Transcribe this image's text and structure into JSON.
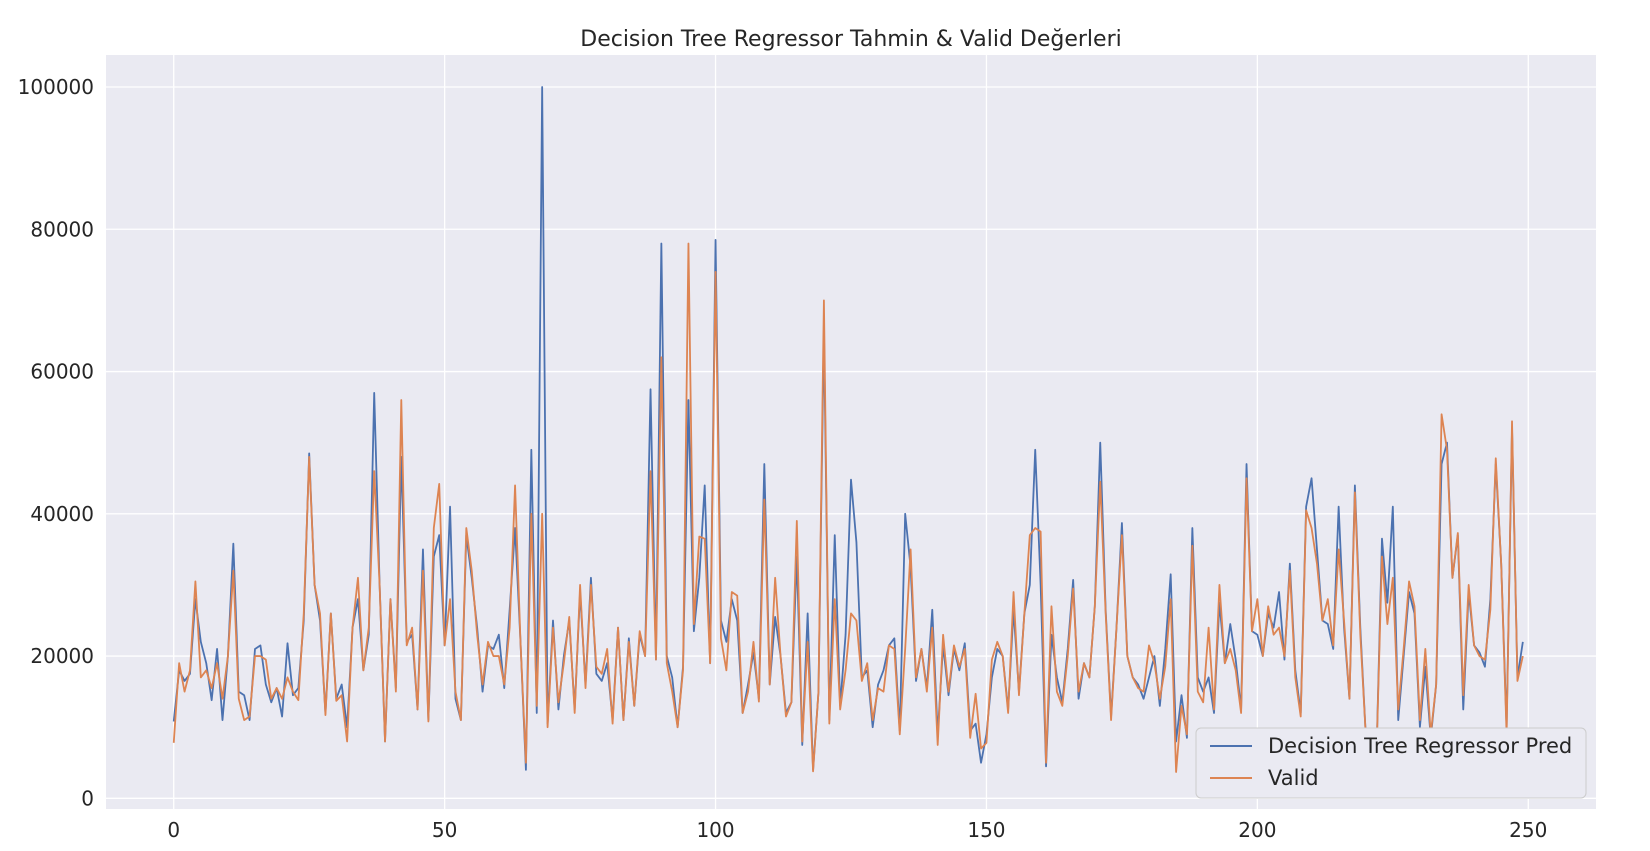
{
  "chart_data": {
    "type": "line",
    "title": "Decision Tree Regressor Tahmin & Valid Değerleri",
    "xlabel": "",
    "ylabel": "",
    "xlim": [
      -12.5,
      262.5
    ],
    "ylim": [
      -1500,
      104500
    ],
    "x_ticks": [
      0,
      50,
      100,
      150,
      200,
      250
    ],
    "y_ticks": [
      0,
      20000,
      40000,
      60000,
      80000,
      100000
    ],
    "grid": true,
    "legend_position": "lower-right",
    "colors": {
      "pred": "#4c72b0",
      "valid": "#dd8452",
      "background": "#eaeaf2",
      "grid": "#ffffff"
    },
    "series": [
      {
        "name": "Decision Tree Regressor Pred",
        "values": [
          10800,
          18000,
          16500,
          17500,
          28000,
          22000,
          19000,
          13800,
          21000,
          11000,
          20000,
          35800,
          15000,
          14500,
          11000,
          21000,
          21500,
          16000,
          13500,
          15500,
          11500,
          21800,
          14500,
          15500,
          25000,
          48500,
          30000,
          25000,
          12000,
          26000,
          14000,
          16000,
          10000,
          24000,
          28000,
          18000,
          23000,
          57000,
          30000,
          8000,
          28000,
          15500,
          48000,
          22000,
          23000,
          12500,
          35000,
          11000,
          34000,
          37000,
          21500,
          41000,
          14000,
          11000,
          37000,
          31000,
          24000,
          15000,
          21500,
          21000,
          23000,
          15500,
          26500,
          38000,
          22000,
          4000,
          49000,
          12000,
          100000,
          10500,
          25000,
          12500,
          20000,
          25000,
          12500,
          29000,
          16000,
          31000,
          17500,
          16500,
          19000,
          11000,
          24000,
          11000,
          22500,
          13000,
          23000,
          20000,
          57500,
          19500,
          78000,
          20000,
          17000,
          10000,
          18500,
          56000,
          23500,
          31000,
          44000,
          19000,
          78500,
          25000,
          22000,
          28000,
          25000,
          12000,
          16000,
          20500,
          14000,
          47000,
          16000,
          25500,
          20000,
          12000,
          13500,
          34000,
          7500,
          26000,
          4000,
          15000,
          66000,
          11000,
          37000,
          13000,
          23000,
          44800,
          36000,
          17000,
          18000,
          10000,
          16000,
          18000,
          21500,
          22500,
          9500,
          40000,
          32500,
          16500,
          21000,
          15500,
          26500,
          9000,
          21500,
          14500,
          21000,
          18000,
          21800,
          9500,
          10500,
          5000,
          9000,
          17000,
          21000,
          20000,
          12500,
          26500,
          15000,
          26000,
          30000,
          49000,
          30000,
          4500,
          23000,
          17000,
          13500,
          21000,
          30700,
          14000,
          19000,
          17000,
          27000,
          50000,
          26500,
          11500,
          24000,
          38700,
          20000,
          17000,
          16000,
          14000,
          17000,
          20000,
          13000,
          21000,
          31500,
          8000,
          14500,
          8500,
          38000,
          17000,
          15000,
          17000,
          12000,
          27500,
          19000,
          24500,
          19500,
          12500,
          47000,
          23500,
          23000,
          20000,
          26000,
          24000,
          29000,
          19500,
          33000,
          18000,
          12000,
          41000,
          45000,
          35000,
          25000,
          24500,
          21000,
          41000,
          24000,
          14000,
          44000,
          24000,
          9000,
          8500,
          6500,
          36500,
          27500,
          41000,
          11000,
          20000,
          29000,
          26000,
          10000,
          18500,
          8500,
          16000,
          47000,
          50000,
          31000,
          37000,
          12500,
          29000,
          21500,
          20500,
          18500,
          28000,
          47000,
          33000,
          10000,
          52000,
          17000,
          22000
        ]
      },
      {
        "name": "Valid",
        "values": [
          7800,
          19000,
          15000,
          18000,
          30500,
          17000,
          18000,
          15500,
          19000,
          14000,
          20000,
          32000,
          14000,
          11000,
          11500,
          20000,
          20000,
          19500,
          14000,
          15500,
          14000,
          17000,
          15000,
          13800,
          26000,
          48000,
          30000,
          26000,
          11700,
          26000,
          13700,
          14500,
          8000,
          24000,
          31000,
          18000,
          24000,
          46000,
          30000,
          8000,
          28000,
          15000,
          56000,
          21500,
          24000,
          12500,
          32000,
          10800,
          38000,
          44200,
          21500,
          28000,
          15000,
          11000,
          38000,
          32000,
          23000,
          16000,
          22000,
          20000,
          20000,
          16000,
          24000,
          44000,
          22000,
          5000,
          40000,
          13000,
          40000,
          10000,
          24000,
          13500,
          19000,
          25500,
          12000,
          30000,
          15500,
          30000,
          18500,
          17500,
          21000,
          10500,
          24000,
          11000,
          22000,
          13000,
          23500,
          20000,
          46000,
          19500,
          62000,
          19000,
          15000,
          10000,
          18000,
          78000,
          24500,
          36800,
          36500,
          19000,
          74000,
          22500,
          18000,
          29000,
          28500,
          12000,
          15000,
          22000,
          13600,
          42000,
          16000,
          31000,
          20000,
          11500,
          13500,
          39000,
          8000,
          22000,
          3800,
          15000,
          70000,
          10500,
          28000,
          12500,
          18000,
          26000,
          25000,
          16500,
          19000,
          11000,
          15500,
          15000,
          21500,
          21000,
          9000,
          21000,
          35000,
          17000,
          21000,
          15000,
          24000,
          7500,
          23000,
          15000,
          21500,
          18500,
          21000,
          8500,
          14700,
          7000,
          7800,
          19500,
          22000,
          20000,
          12000,
          29000,
          14500,
          26000,
          37000,
          38000,
          37500,
          5000,
          27000,
          15000,
          13000,
          20000,
          29500,
          15000,
          19000,
          17000,
          27000,
          44500,
          26000,
          11000,
          24000,
          37000,
          20000,
          17000,
          15500,
          15000,
          21500,
          19000,
          14000,
          18500,
          28000,
          3700,
          13000,
          9000,
          35500,
          15000,
          13500,
          24000,
          12500,
          30000,
          19000,
          21000,
          18000,
          12000,
          45000,
          23500,
          28000,
          20000,
          27000,
          23000,
          24000,
          20000,
          32000,
          17000,
          11500,
          40500,
          38000,
          33000,
          25000,
          28000,
          21500,
          35000,
          25000,
          14000,
          43000,
          23000,
          9000,
          8000,
          6500,
          34000,
          24500,
          31000,
          12500,
          21000,
          30500,
          27000,
          11000,
          21000,
          9000,
          16000,
          54000,
          49000,
          31000,
          37300,
          14500,
          30000,
          21500,
          20000,
          19500,
          26500,
          47800,
          33000,
          9000,
          53000,
          16500,
          20000
        ]
      }
    ]
  }
}
